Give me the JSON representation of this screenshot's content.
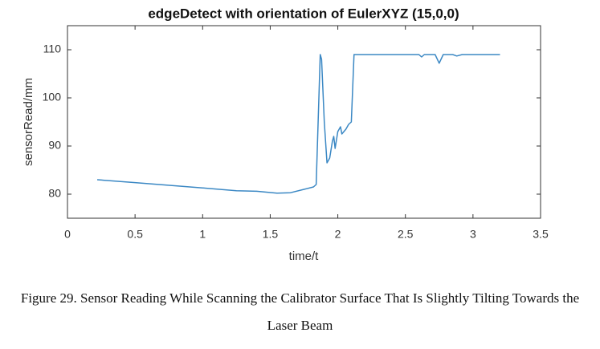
{
  "chart_data": {
    "type": "line",
    "title": "edgeDetect with orientation of EulerXYZ (15,0,0)",
    "x_label": "time/t",
    "y_label": "sensorRead/mm",
    "x": [
      0.22,
      0.5,
      1.0,
      1.25,
      1.4,
      1.55,
      1.65,
      1.75,
      1.82,
      1.84,
      1.86,
      1.87,
      1.88,
      1.9,
      1.92,
      1.94,
      1.96,
      1.97,
      1.98,
      2.0,
      2.02,
      2.03,
      2.06,
      2.08,
      2.1,
      2.12,
      2.2,
      2.6,
      2.62,
      2.64,
      2.72,
      2.75,
      2.78,
      2.85,
      2.88,
      2.92,
      3.2
    ],
    "series": [
      {
        "name": "sensor",
        "color": "#3b88c4",
        "values": [
          83,
          82.4,
          81.3,
          80.7,
          80.6,
          80.2,
          80.3,
          81,
          81.5,
          82,
          100,
          109,
          108,
          95,
          86.5,
          87.5,
          91,
          92,
          89.5,
          93,
          94,
          92.5,
          93.5,
          94.5,
          95,
          109,
          109,
          109,
          108.5,
          109,
          109,
          107.2,
          109,
          109,
          108.7,
          109,
          109
        ]
      }
    ],
    "xlim": [
      0,
      3.5
    ],
    "xticks": [
      0,
      0.5,
      1,
      1.5,
      2,
      2.5,
      3,
      3.5
    ],
    "ylim": [
      75,
      115
    ],
    "yticks": [
      80,
      90,
      100,
      110
    ],
    "grid": false
  },
  "caption": "Figure 29. Sensor Reading While Scanning the Calibrator Surface That Is Slightly Tilting Towards the Laser Beam"
}
